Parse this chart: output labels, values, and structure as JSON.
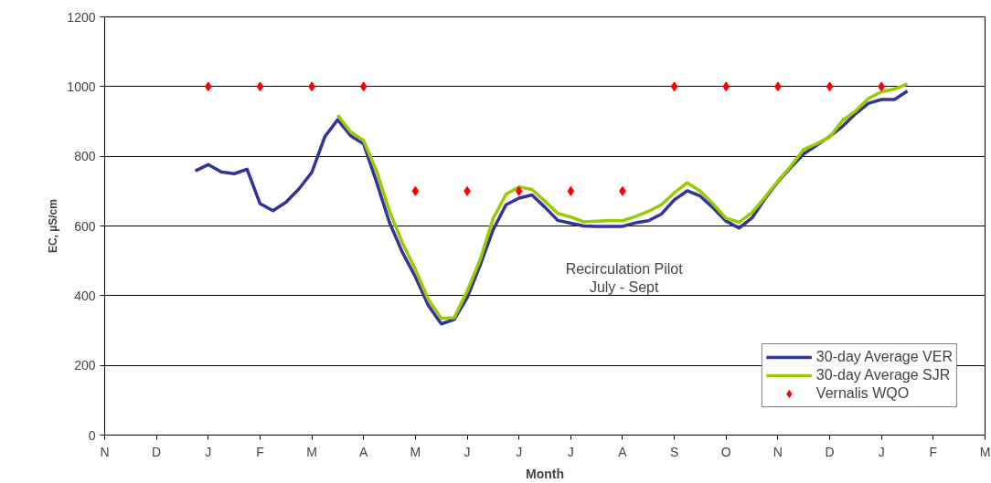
{
  "chart_data": {
    "type": "line",
    "xlabel": "Month",
    "ylabel": "EC, µS/cm",
    "categories": [
      "N",
      null,
      null,
      null,
      "D",
      null,
      null,
      null,
      "J",
      null,
      null,
      null,
      "F",
      null,
      null,
      null,
      "M",
      null,
      null,
      null,
      "A",
      null,
      null,
      null,
      "M",
      null,
      null,
      null,
      "J",
      null,
      null,
      null,
      "J",
      null,
      null,
      null,
      "J",
      null,
      null,
      null,
      "A",
      null,
      null,
      null,
      "S",
      null,
      null,
      null,
      "O",
      null,
      null,
      null,
      "N",
      null,
      null,
      null,
      "D",
      null,
      null,
      null,
      "J",
      null,
      null,
      null,
      "F",
      null,
      null,
      null,
      "M"
    ],
    "ylim": [
      0,
      1200
    ],
    "yticks": [
      0,
      200,
      400,
      600,
      800,
      1000,
      1200
    ],
    "grid": "y",
    "legend": "bottom right",
    "line_style": "solid",
    "marker": "none",
    "annotations": [
      "Recirculation Pilot\nJuly - Sept"
    ],
    "series": [
      {
        "name": "30-day Average VER",
        "color": "#333399",
        "values": [
          null,
          null,
          null,
          null,
          null,
          null,
          null,
          758,
          776,
          755,
          750,
          763,
          664,
          644,
          668,
          706,
          754,
          856,
          905,
          859,
          836,
          726,
          610,
          524,
          454,
          372,
          319,
          332,
          394,
          487,
          589,
          661,
          680,
          689,
          654,
          616,
          608,
          600,
          599,
          599,
          599,
          609,
          615,
          634,
          675,
          701,
          686,
          652,
          614,
          594,
          623,
          678,
          727,
          768,
          807,
          832,
          857,
          886,
          922,
          952,
          963,
          963,
          987,
          null,
          null,
          null,
          null,
          null,
          null
        ]
      },
      {
        "name": "30-day Average SJR",
        "color": "#99cc00",
        "values": [
          null,
          null,
          null,
          null,
          null,
          null,
          null,
          null,
          null,
          null,
          null,
          null,
          null,
          null,
          null,
          null,
          null,
          null,
          918,
          870,
          845,
          758,
          643,
          551,
          475,
          389,
          335,
          337,
          413,
          503,
          621,
          691,
          712,
          705,
          671,
          636,
          626,
          612,
          614,
          616,
          615,
          627,
          642,
          661,
          695,
          724,
          700,
          663,
          622,
          611,
          638,
          682,
          729,
          772,
          820,
          836,
          855,
          903,
          930,
          966,
          985,
          993,
          1008,
          null,
          null,
          null,
          null,
          null,
          null
        ]
      },
      {
        "name": "Vernalis WQO",
        "type": "scatter",
        "marker": "diamond",
        "color": "#ff0000",
        "values": [
          null,
          null,
          null,
          null,
          null,
          null,
          null,
          null,
          1000,
          null,
          null,
          null,
          1000,
          null,
          null,
          null,
          1000,
          null,
          null,
          null,
          1000,
          null,
          null,
          null,
          700,
          null,
          null,
          null,
          700,
          null,
          null,
          null,
          700,
          null,
          null,
          null,
          700,
          null,
          null,
          null,
          700,
          null,
          null,
          null,
          1000,
          null,
          null,
          null,
          1000,
          null,
          null,
          null,
          1000,
          null,
          null,
          null,
          1000,
          null,
          null,
          null,
          1000,
          null,
          null,
          null,
          null,
          null,
          null,
          null,
          null
        ]
      }
    ]
  }
}
